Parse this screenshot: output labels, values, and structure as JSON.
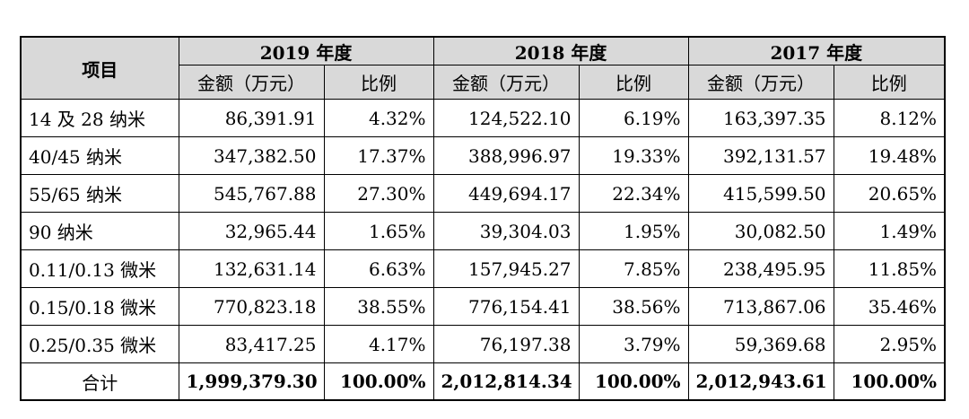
{
  "table": {
    "item_header": "项目",
    "years": [
      "2019 年度",
      "2018 年度",
      "2017 年度"
    ],
    "sub_headers": {
      "amount": "金额（万元）",
      "ratio": "比例"
    },
    "rows": [
      {
        "label": "14 及 28 纳米",
        "cells": [
          "86,391.91",
          "4.32%",
          "124,522.10",
          "6.19%",
          "163,397.35",
          "8.12%"
        ]
      },
      {
        "label": "40/45 纳米",
        "cells": [
          "347,382.50",
          "17.37%",
          "388,996.97",
          "19.33%",
          "392,131.57",
          "19.48%"
        ]
      },
      {
        "label": "55/65 纳米",
        "cells": [
          "545,767.88",
          "27.30%",
          "449,694.17",
          "22.34%",
          "415,599.50",
          "20.65%"
        ]
      },
      {
        "label": "90 纳米",
        "cells": [
          "32,965.44",
          "1.65%",
          "39,304.03",
          "1.95%",
          "30,082.50",
          "1.49%"
        ]
      },
      {
        "label": "0.11/0.13 微米",
        "cells": [
          "132,631.14",
          "6.63%",
          "157,945.27",
          "7.85%",
          "238,495.95",
          "11.85%"
        ]
      },
      {
        "label": "0.15/0.18 微米",
        "cells": [
          "770,823.18",
          "38.55%",
          "776,154.41",
          "38.56%",
          "713,867.06",
          "35.46%"
        ]
      },
      {
        "label": "0.25/0.35 微米",
        "cells": [
          "83,417.25",
          "4.17%",
          "76,197.38",
          "3.79%",
          "59,369.68",
          "2.95%"
        ]
      }
    ],
    "total": {
      "label": "合计",
      "cells": [
        "1,999,379.30",
        "100.00%",
        "2,012,814.34",
        "100.00%",
        "2,012,943.61",
        "100.00%"
      ]
    }
  },
  "colors": {
    "header_bg": "#d9d9d9",
    "border": "#000000"
  }
}
